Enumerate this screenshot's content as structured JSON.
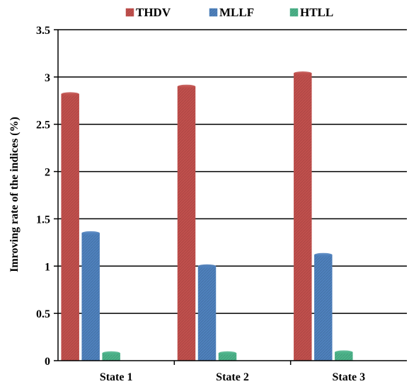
{
  "chart_data": {
    "type": "bar",
    "categories": [
      "State 1",
      "State 2",
      "State 3"
    ],
    "series": [
      {
        "name": "THDV",
        "values": [
          2.82,
          2.9,
          3.04
        ],
        "color": "#c0504d"
      },
      {
        "name": "MLLF",
        "values": [
          1.35,
          1.0,
          1.12
        ],
        "color": "#4f81bd"
      },
      {
        "name": "HTLL",
        "values": [
          0.08,
          0.08,
          0.09
        ],
        "color": "#4db389"
      }
    ],
    "ylabel": "Imroving rate of the indices (%)",
    "ylim": [
      0,
      3.5
    ],
    "yticks": [
      "0",
      "0.5",
      "1",
      "1.5",
      "2",
      "2.5",
      "3",
      "3.5"
    ],
    "grid": true,
    "legend_position": "top"
  }
}
